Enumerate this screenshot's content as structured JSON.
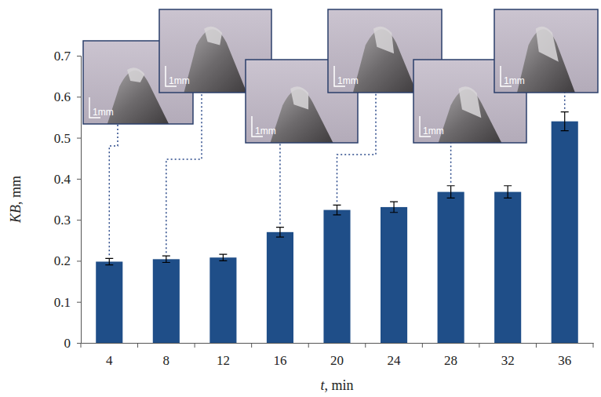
{
  "chart_data": {
    "type": "bar",
    "x_label": "t, min",
    "y_label": "KB, mm",
    "categories": [
      "4",
      "8",
      "12",
      "16",
      "20",
      "24",
      "28",
      "32",
      "36"
    ],
    "values": [
      0.198,
      0.204,
      0.208,
      0.27,
      0.324,
      0.331,
      0.368,
      0.368,
      0.54
    ],
    "errors": [
      0.008,
      0.008,
      0.008,
      0.012,
      0.012,
      0.013,
      0.015,
      0.015,
      0.023
    ],
    "color": "#1f4e88",
    "ylim": [
      0,
      0.7
    ],
    "yticks": [
      0,
      0.1,
      0.2,
      0.3,
      0.4,
      0.5,
      0.6,
      0.7
    ],
    "grid": false,
    "insets": [
      {
        "category": "4",
        "scale_bar": "1mm"
      },
      {
        "category": "8",
        "scale_bar": "1mm"
      },
      {
        "category": "16",
        "scale_bar": "1mm"
      },
      {
        "category": "20",
        "scale_bar": "1mm"
      },
      {
        "category": "28",
        "scale_bar": "1mm"
      },
      {
        "category": "36",
        "scale_bar": "1mm"
      }
    ]
  }
}
